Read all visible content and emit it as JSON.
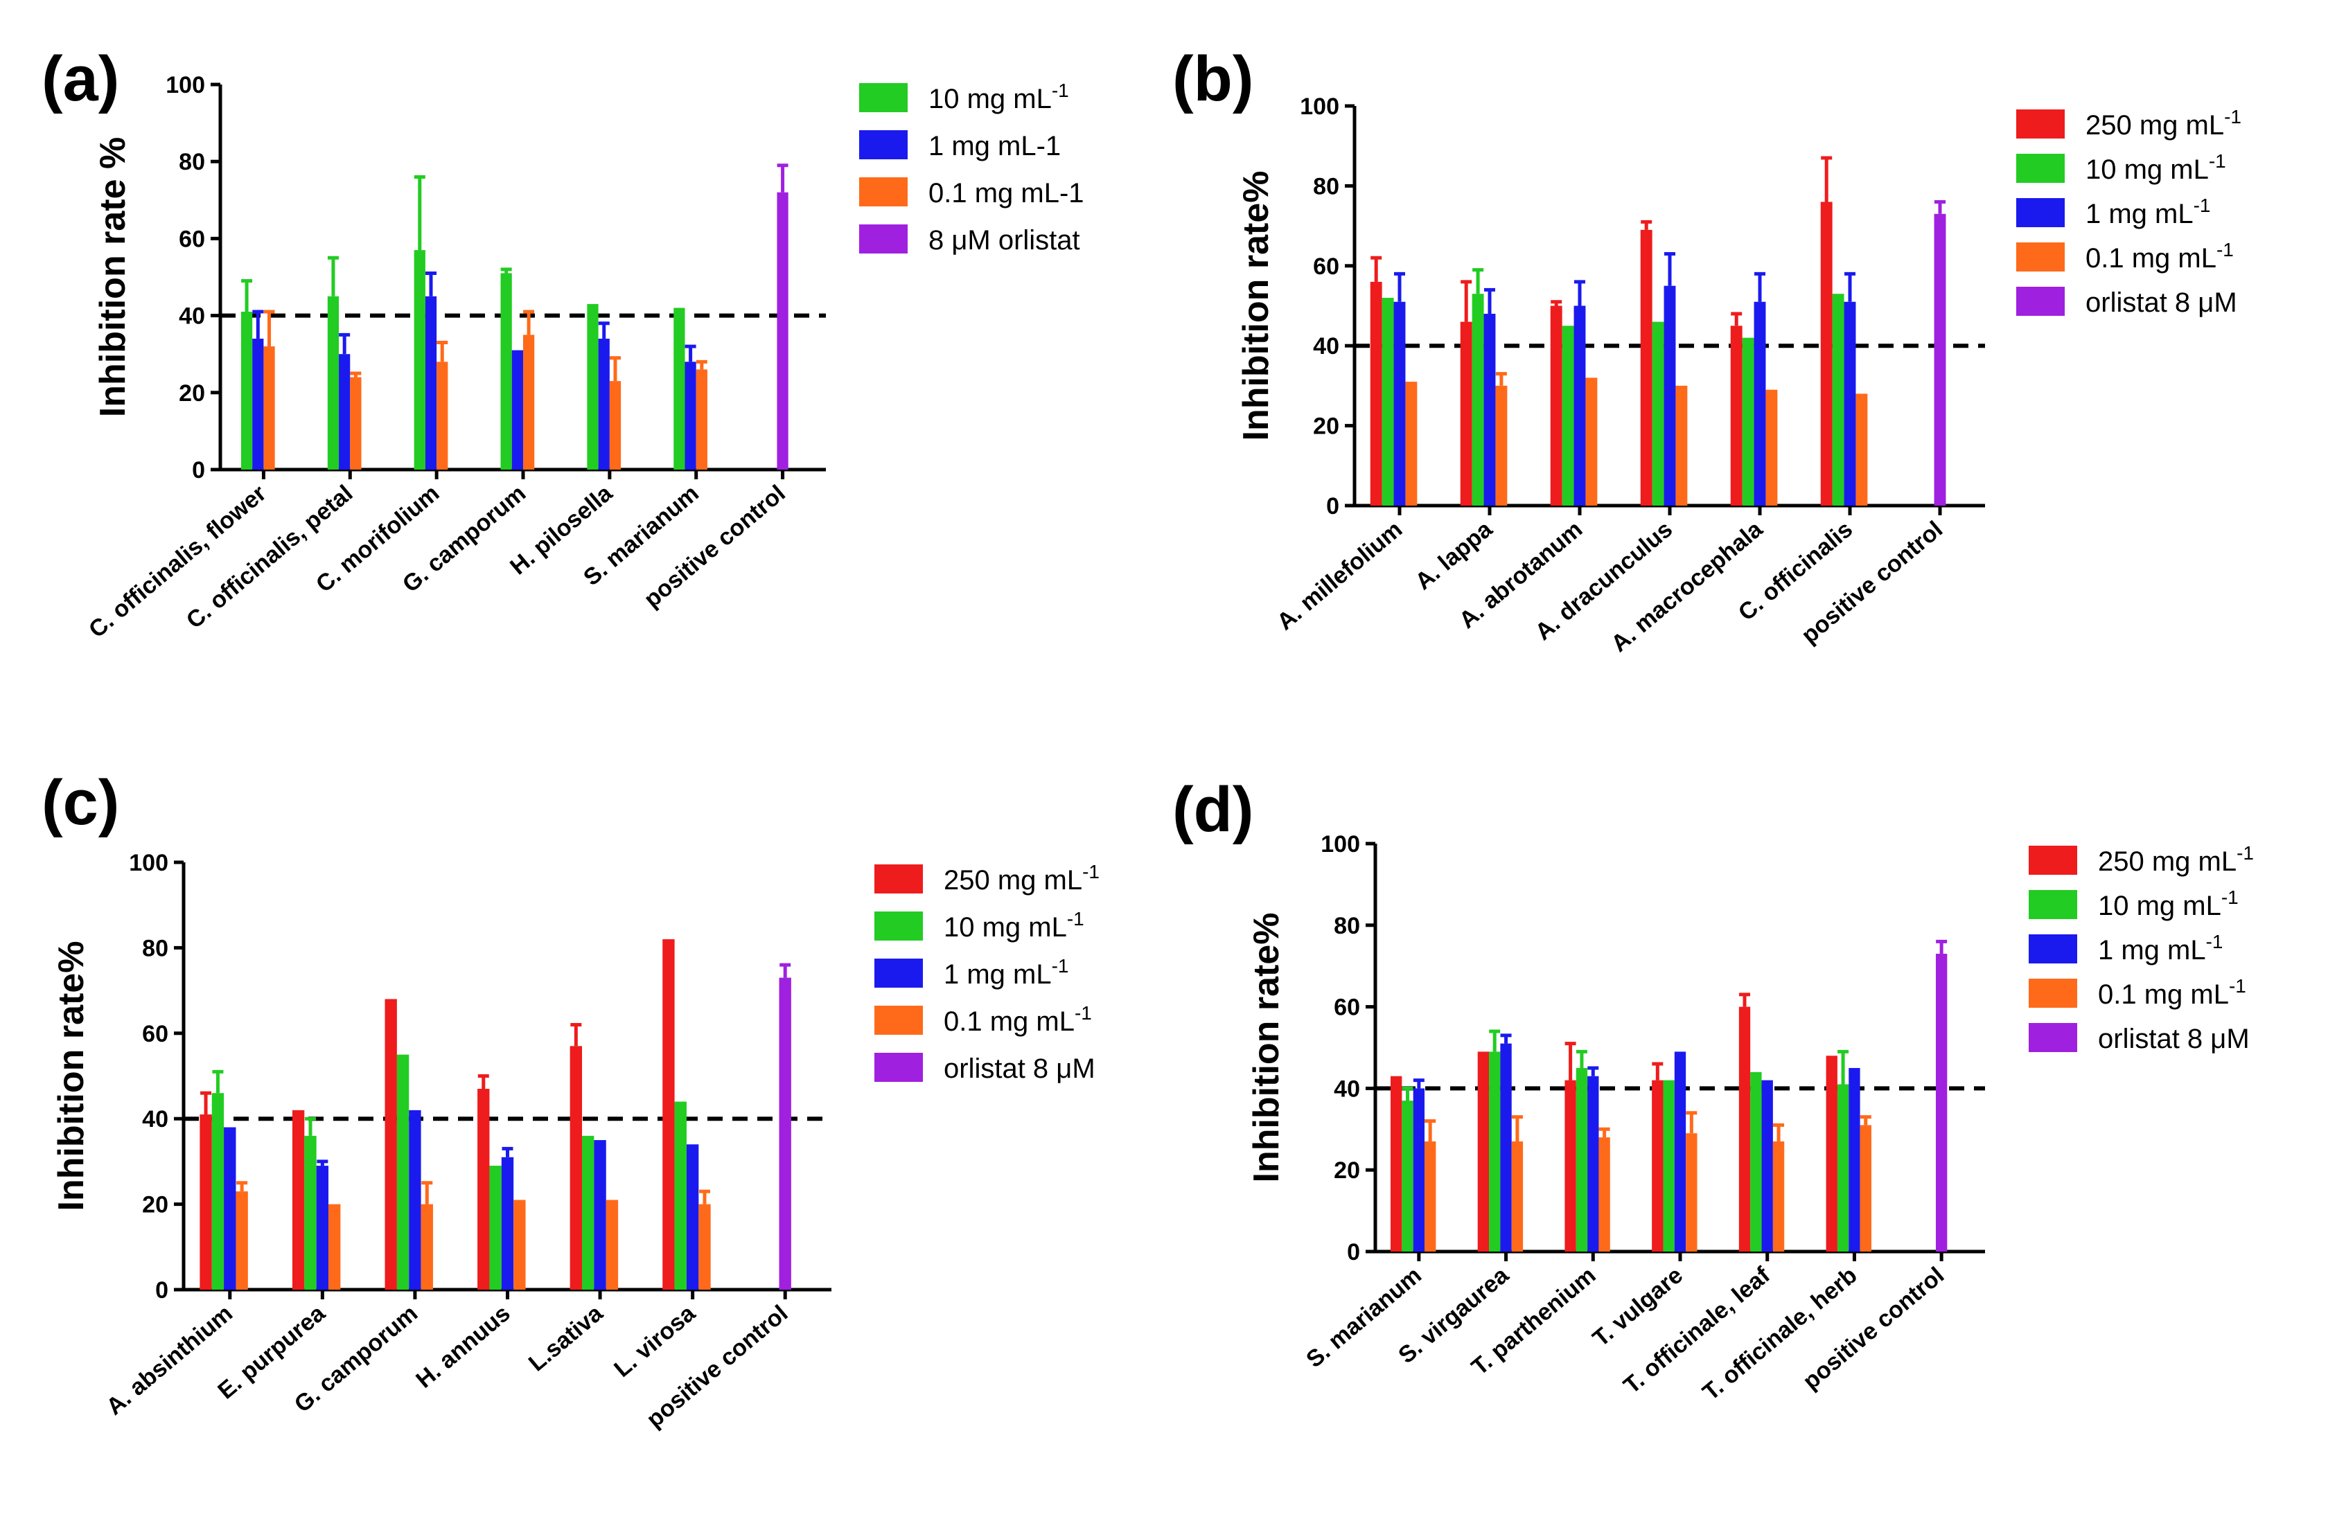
{
  "chart_data": [
    {
      "panel": "(a)",
      "type": "bar",
      "ylabel": "Inhibition rate %",
      "ylim": [
        0,
        100
      ],
      "yticks": [
        "0",
        "20",
        "40",
        "60",
        "80",
        "100"
      ],
      "reference_line": 40,
      "categories": [
        "C. officinalis, flower",
        "C. officinalis, petal",
        "C. morifolium",
        "G. camporum",
        "H. pilosella",
        "S. marianum",
        "positive control"
      ],
      "series": [
        {
          "name": "10 mg mL",
          "sup": "-1",
          "color": "#22cc22",
          "values": [
            41,
            45,
            57,
            51,
            43,
            42,
            null
          ],
          "errors": [
            8,
            10,
            19,
            1,
            0,
            0,
            null
          ]
        },
        {
          "name": "1 mg mL-1",
          "sup": "",
          "color": "#1a1aee",
          "values": [
            34,
            30,
            45,
            31,
            34,
            28,
            null
          ],
          "errors": [
            7,
            5,
            6,
            0,
            4,
            4,
            null
          ]
        },
        {
          "name": "0.1 mg mL-1",
          "sup": "",
          "color": "#ff6a1a",
          "values": [
            32,
            24,
            28,
            35,
            23,
            26,
            null
          ],
          "errors": [
            9,
            1,
            5,
            6,
            6,
            2,
            null
          ]
        },
        {
          "name": "8 μM orlistat",
          "sup": "",
          "color": "#a020e0",
          "values": [
            null,
            null,
            null,
            null,
            null,
            null,
            72
          ],
          "errors": [
            null,
            null,
            null,
            null,
            null,
            null,
            7
          ]
        }
      ]
    },
    {
      "panel": "(b)",
      "type": "bar",
      "ylabel": "Inhibition rate%",
      "ylim": [
        0,
        100
      ],
      "yticks": [
        "0",
        "20",
        "40",
        "60",
        "80",
        "100"
      ],
      "reference_line": 40,
      "categories": [
        "A. millefolium",
        "A. lappa",
        "A. abrotanum",
        "A. dracunculus",
        "A. macrocephala",
        "C. officinalis",
        "positive control"
      ],
      "series": [
        {
          "name": "250 mg mL",
          "sup": "-1",
          "color": "#ee1c1c",
          "values": [
            56,
            46,
            50,
            69,
            45,
            76,
            null
          ],
          "errors": [
            6,
            10,
            1,
            2,
            3,
            11,
            null
          ]
        },
        {
          "name": "10 mg mL",
          "sup": "-1",
          "color": "#22cc22",
          "values": [
            52,
            53,
            45,
            46,
            42,
            53,
            null
          ],
          "errors": [
            0,
            6,
            0,
            0,
            0,
            0,
            null
          ]
        },
        {
          "name": "1 mg mL",
          "sup": "-1",
          "color": "#1a1aee",
          "values": [
            51,
            48,
            50,
            55,
            51,
            51,
            null
          ],
          "errors": [
            7,
            6,
            6,
            8,
            7,
            7,
            null
          ]
        },
        {
          "name": "0.1 mg mL",
          "sup": "-1",
          "color": "#ff6a1a",
          "values": [
            31,
            30,
            32,
            30,
            29,
            28,
            null
          ],
          "errors": [
            0,
            3,
            0,
            0,
            0,
            0,
            null
          ]
        },
        {
          "name": "orlistat 8 μM",
          "sup": "",
          "color": "#a020e0",
          "values": [
            null,
            null,
            null,
            null,
            null,
            null,
            73
          ],
          "errors": [
            null,
            null,
            null,
            null,
            null,
            null,
            3
          ]
        }
      ]
    },
    {
      "panel": "(c)",
      "type": "bar",
      "ylabel": "Inhibition rate%",
      "ylim": [
        0,
        100
      ],
      "yticks": [
        "0",
        "20",
        "40",
        "60",
        "80",
        "100"
      ],
      "reference_line": 40,
      "categories": [
        "A. absinthium",
        "E. purpurea",
        "G. camporum",
        "H. annuus",
        "L.sativa",
        "L. virosa",
        "positive control"
      ],
      "series": [
        {
          "name": "250 mg mL",
          "sup": "-1",
          "color": "#ee1c1c",
          "values": [
            41,
            42,
            68,
            47,
            57,
            82,
            null
          ],
          "errors": [
            5,
            0,
            0,
            3,
            5,
            0,
            null
          ]
        },
        {
          "name": "10 mg mL",
          "sup": "-1",
          "color": "#22cc22",
          "values": [
            46,
            36,
            55,
            29,
            36,
            44,
            null
          ],
          "errors": [
            5,
            4,
            0,
            0,
            0,
            0,
            null
          ]
        },
        {
          "name": "1 mg mL",
          "sup": "-1",
          "color": "#1a1aee",
          "values": [
            38,
            29,
            42,
            31,
            35,
            34,
            null
          ],
          "errors": [
            0,
            1,
            0,
            2,
            0,
            0,
            null
          ]
        },
        {
          "name": "0.1 mg mL",
          "sup": "-1",
          "color": "#ff6a1a",
          "values": [
            23,
            20,
            20,
            21,
            21,
            20,
            null
          ],
          "errors": [
            2,
            0,
            5,
            0,
            0,
            3,
            null
          ]
        },
        {
          "name": "orlistat 8 μM",
          "sup": "",
          "color": "#a020e0",
          "values": [
            null,
            null,
            null,
            null,
            null,
            null,
            73
          ],
          "errors": [
            null,
            null,
            null,
            null,
            null,
            null,
            3
          ]
        }
      ]
    },
    {
      "panel": "(d)",
      "type": "bar",
      "ylabel": "Inhibition rate%",
      "ylim": [
        0,
        100
      ],
      "yticks": [
        "0",
        "20",
        "40",
        "60",
        "80",
        "100"
      ],
      "reference_line": 40,
      "categories": [
        "S. marianum",
        "S. virgaurea",
        "T. parthenium",
        "T. vulgare",
        "T. officinale, leaf",
        "T. officinale, herb",
        "positive control"
      ],
      "series": [
        {
          "name": "250 mg mL",
          "sup": "-1",
          "color": "#ee1c1c",
          "values": [
            43,
            49,
            42,
            42,
            60,
            48,
            null
          ],
          "errors": [
            0,
            0,
            9,
            4,
            3,
            0,
            null
          ]
        },
        {
          "name": "10 mg mL",
          "sup": "-1",
          "color": "#22cc22",
          "values": [
            37,
            49,
            45,
            42,
            44,
            41,
            null
          ],
          "errors": [
            3,
            5,
            4,
            0,
            0,
            8,
            null
          ]
        },
        {
          "name": "1 mg mL",
          "sup": "-1",
          "color": "#1a1aee",
          "values": [
            40,
            51,
            43,
            49,
            42,
            45,
            null
          ],
          "errors": [
            2,
            2,
            2,
            0,
            0,
            0,
            null
          ]
        },
        {
          "name": "0.1 mg mL",
          "sup": "-1",
          "color": "#ff6a1a",
          "values": [
            27,
            27,
            28,
            29,
            27,
            31,
            null
          ],
          "errors": [
            5,
            6,
            2,
            5,
            4,
            2,
            null
          ]
        },
        {
          "name": "orlistat 8 μM",
          "sup": "",
          "color": "#a020e0",
          "values": [
            null,
            null,
            null,
            null,
            null,
            null,
            73
          ],
          "errors": [
            null,
            null,
            null,
            null,
            null,
            null,
            3
          ]
        }
      ]
    }
  ]
}
